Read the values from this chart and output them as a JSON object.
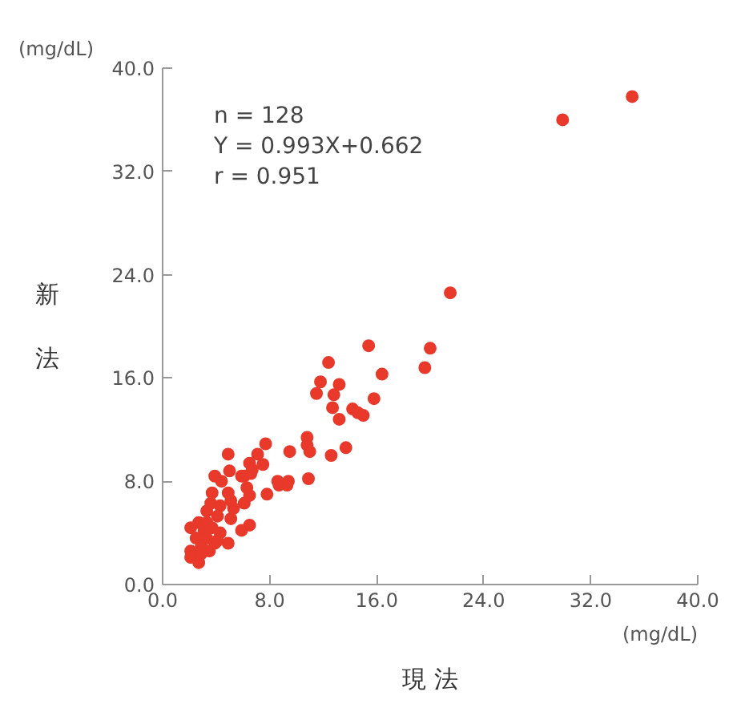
{
  "chart_data": {
    "type": "scatter",
    "xlabel": "現 法",
    "ylabel": "新法",
    "annotations": [
      "n = 128",
      "Y = 0.993X+0.662",
      "r = 0.951",
      "(mg/dL)",
      "(mg/dL)"
    ],
    "xlim": [
      0,
      40
    ],
    "ylim": [
      0,
      40
    ],
    "xticks": [
      {
        "value": 0,
        "label": "0.0"
      },
      {
        "value": 8,
        "label": "8.0"
      },
      {
        "value": 16,
        "label": "16.0"
      },
      {
        "value": 24,
        "label": "24.0"
      },
      {
        "value": 32,
        "label": "32.0"
      },
      {
        "value": 40,
        "label": "40.0"
      }
    ],
    "yticks": [
      {
        "value": 0,
        "label": "0.0"
      },
      {
        "value": 8,
        "label": "8.0"
      },
      {
        "value": 16,
        "label": "16.0"
      },
      {
        "value": 24,
        "label": "24.0"
      },
      {
        "value": 32,
        "label": "32.0"
      },
      {
        "value": 40,
        "label": "40.0"
      }
    ],
    "grid": false,
    "marker": "circle",
    "series": [
      {
        "color": "#e8392b",
        "x": [
          29.9,
          35.1,
          21.5,
          15.4,
          20.0,
          19.6,
          12.4,
          16.4,
          11.8,
          13.2,
          11.5,
          12.8,
          15.8,
          12.7,
          14.2,
          14.6,
          15.0,
          13.2,
          10.8,
          10.8,
          11.0,
          13.7,
          12.6,
          9.5,
          7.7,
          7.1,
          6.5,
          7.5,
          6.7,
          6.1,
          8.6,
          9.4,
          10.9,
          4.9,
          5.0,
          6.6,
          3.9,
          4.4,
          5.9,
          6.3,
          8.7,
          9.3,
          7.8,
          3.7,
          4.9,
          5.1,
          6.1,
          6.5,
          3.6,
          4.3,
          5.3,
          3.3,
          4.1,
          5.1,
          6.5,
          5.9,
          2.1,
          2.7,
          3.1,
          3.7,
          4.3,
          2.5,
          3.3,
          3.9,
          4.9,
          2.9,
          2.1,
          2.1,
          2.9,
          2.7,
          3.5,
          4.1,
          3.3
        ],
        "values": [
          36.0,
          37.8,
          22.6,
          18.5,
          18.3,
          16.8,
          17.2,
          16.3,
          15.7,
          15.5,
          14.8,
          14.7,
          14.4,
          13.7,
          13.6,
          13.3,
          13.1,
          12.8,
          11.4,
          10.8,
          10.3,
          10.6,
          10.0,
          10.3,
          10.9,
          10.1,
          9.4,
          9.3,
          8.9,
          8.4,
          8.0,
          8.0,
          8.2,
          10.1,
          8.8,
          8.6,
          8.4,
          8.0,
          8.4,
          7.5,
          7.7,
          7.7,
          7.0,
          7.1,
          7.1,
          6.5,
          6.3,
          6.9,
          6.3,
          6.1,
          5.9,
          5.7,
          5.3,
          5.1,
          4.6,
          4.2,
          4.4,
          4.8,
          4.2,
          4.4,
          4.0,
          3.6,
          3.6,
          3.2,
          3.2,
          3.0,
          2.6,
          2.1,
          2.4,
          1.7,
          2.6,
          3.4,
          4.8
        ]
      }
    ]
  }
}
